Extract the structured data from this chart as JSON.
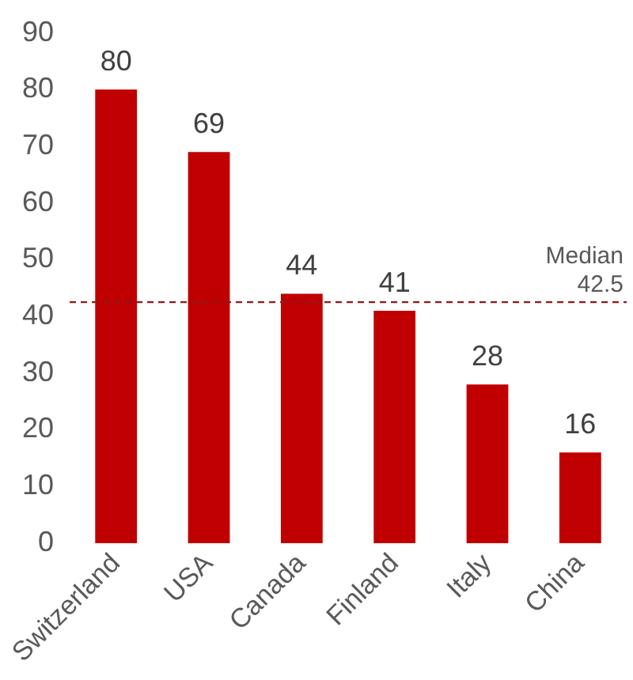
{
  "chart_data": {
    "type": "bar",
    "categories": [
      "Switzerland",
      "USA",
      "Canada",
      "Finland",
      "Italy",
      "China"
    ],
    "values": [
      80,
      69,
      44,
      41,
      28,
      16
    ],
    "color": "#c00000",
    "ylim": [
      0,
      90
    ],
    "yticks": [
      0,
      10,
      20,
      30,
      40,
      50,
      60,
      70,
      80,
      90
    ],
    "grid": false,
    "legend": false,
    "data_labels": true,
    "ref_lines": [
      {
        "axis": "y",
        "value": 42.5,
        "label": "Median\n42.5",
        "color": "#8b1a1a",
        "line_style": "dashed"
      }
    ]
  }
}
